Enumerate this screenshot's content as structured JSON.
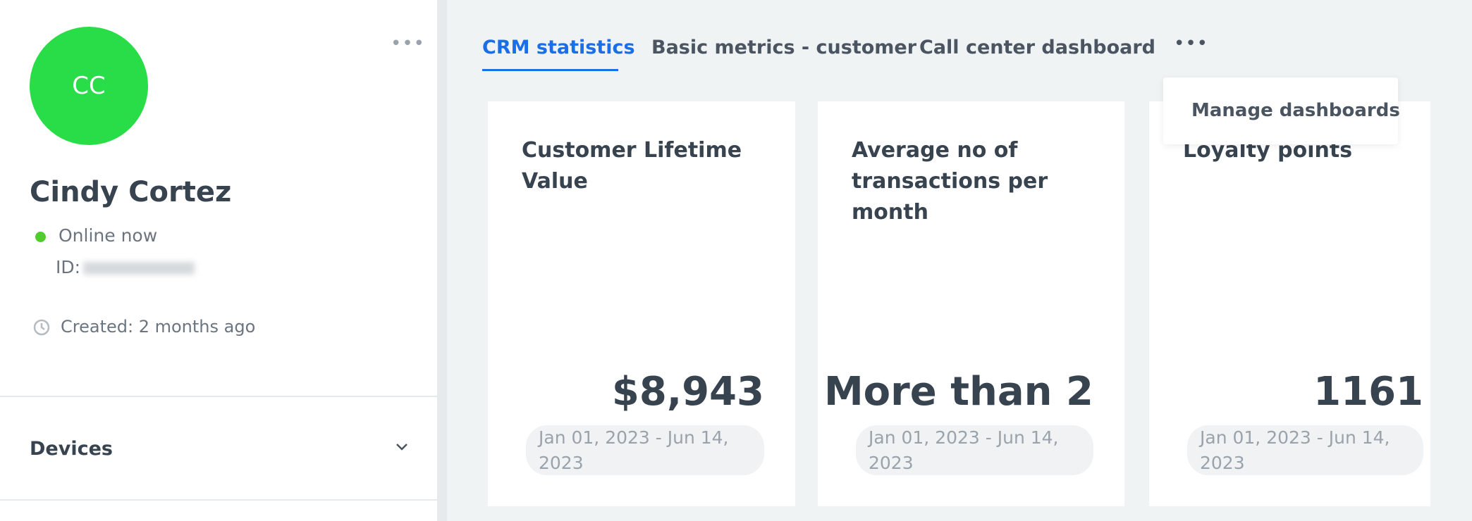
{
  "profile": {
    "initials": "CC",
    "name": "Cindy Cortez",
    "status": "Online now",
    "id_label": "ID:",
    "created": "Created: 2 months ago",
    "sections": [
      "Devices"
    ]
  },
  "tabs": {
    "items": [
      "CRM statistics",
      "Basic metrics - customer",
      "Call center dashboard"
    ]
  },
  "menu": {
    "items": [
      "Manage dashboards"
    ]
  },
  "cards": [
    {
      "title": "Customer Lifetime Value",
      "value": "$8,943",
      "range": "Jan 01, 2023 - Jun 14, 2023"
    },
    {
      "title": "Average no of transactions per month",
      "value": "More than 2",
      "range": "Jan 01, 2023 - Jun 14, 2023"
    },
    {
      "title": "Loyalty points",
      "value": "1161",
      "range": "Jan 01, 2023 - Jun 14, 2023"
    }
  ]
}
